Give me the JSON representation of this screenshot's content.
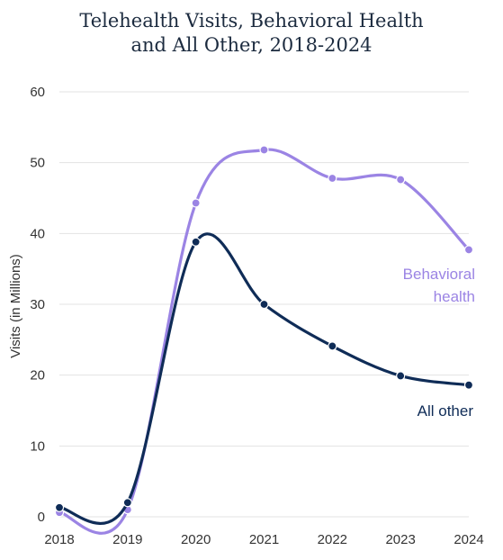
{
  "chart_data": {
    "type": "line",
    "title_lines": [
      "Telehealth Visits, Behavioral Health",
      "and All Other, 2018-2024"
    ],
    "xlabel": "",
    "ylabel": "Visits (in Millions)",
    "x": [
      "2018",
      "2019",
      "2020",
      "2021",
      "2022",
      "2023",
      "2024"
    ],
    "yticks": [
      "0",
      "10",
      "20",
      "30",
      "40",
      "50",
      "60"
    ],
    "ylim": [
      0,
      60
    ],
    "grid": true,
    "legend": "inline-labels-right",
    "series": [
      {
        "name": "Behavioral health",
        "label_lines": [
          "Behavioral",
          "health"
        ],
        "color": "#9b84e4",
        "values": [
          0.6,
          1.0,
          44.3,
          51.8,
          47.8,
          47.6,
          37.7
        ]
      },
      {
        "name": "All other",
        "label_lines": [
          "All other"
        ],
        "color": "#0f2c57",
        "values": [
          1.3,
          2.0,
          38.8,
          30.0,
          24.1,
          19.9,
          18.6
        ]
      }
    ]
  }
}
